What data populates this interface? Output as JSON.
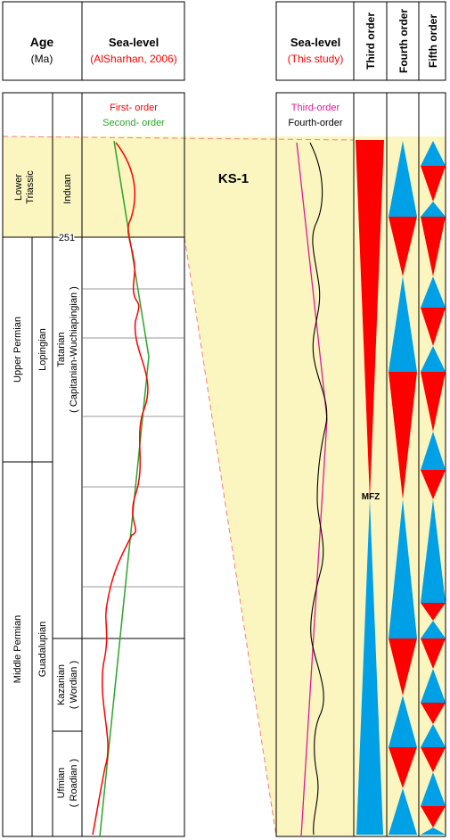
{
  "left_header": {
    "age_title": "Age",
    "age_unit": "(Ma)",
    "sea_level_title": "Sea-level",
    "sea_level_source": "(AlSharhan, 2006)"
  },
  "right_header": {
    "sea_level_title": "Sea-level",
    "sea_level_source": "(This study)",
    "third_order": "Third order",
    "fourth_order": "Fourth order",
    "fifth_order": "Fifth order"
  },
  "legend_left": {
    "first_order": "First- order",
    "second_order": "Second- order"
  },
  "legend_right": {
    "third_order": "Third-order",
    "fourth_order": "Fourth-order"
  },
  "periods": {
    "lower_triassic": "Lower Triassic",
    "upper_permian": "Upper Permian",
    "middle_permian": "Middle Permian"
  },
  "epochs": {
    "lopingian": "Lopingian",
    "guadalupian": "Guadalupian"
  },
  "stages": {
    "induan": "Induan",
    "tatarian_a": "Tatarian",
    "tatarian_b": "( Capitanian-Wuchiapingian )",
    "kazanian_a": "Kazanian",
    "kazanian_b": "( Wordian )",
    "ufmian_a": "Ufmian",
    "ufmian_b": "( Roadian )"
  },
  "age_marker": "251",
  "well_label": "KS-1",
  "mfz_label": "MFZ",
  "colors": {
    "red": "#ff0000",
    "blue": "#00a0e6",
    "green": "#2aa52a",
    "magenta": "#e0199a",
    "shade": "#fbf5c0",
    "pink_dash": "#f08080"
  }
}
